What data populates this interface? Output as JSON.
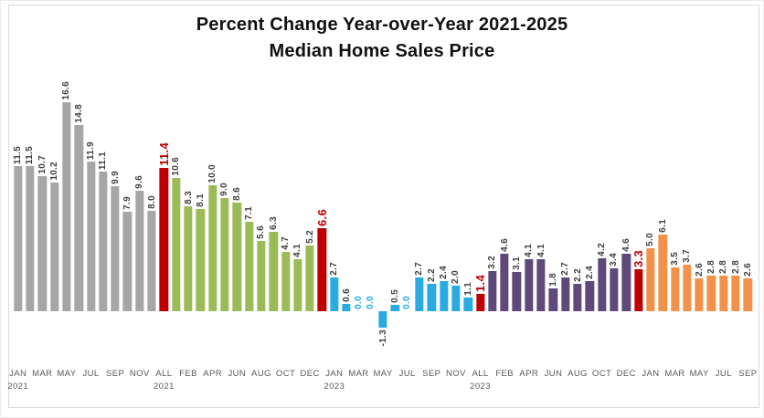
{
  "chart_data": {
    "type": "bar",
    "title_line1": "Percent Change Year-over-Year 2021-2025",
    "title_line2": "Median Home Sales Price",
    "ylabel": "",
    "xlabel": "",
    "ylim": [
      -2.5,
      18
    ],
    "grid": false,
    "legend": "none",
    "value_label_format": "one-decimal, rotated 90deg above bar",
    "palette": {
      "gray": "#A6A6A6",
      "red": "#C00000",
      "green": "#9BBB59",
      "blue": "#29ABE2",
      "purple": "#5F497A",
      "orange": "#F2924A",
      "label_dark": "#3F3F3F",
      "axis_text": "#595959",
      "frame": "#DCDCDC"
    },
    "bars": [
      {
        "month": "JAN",
        "year_group": "2021",
        "value": 11.5,
        "color": "gray",
        "label_color": "dark",
        "tick": "JAN",
        "year": "2021"
      },
      {
        "month": "FEB",
        "year_group": "2021",
        "value": 11.5,
        "color": "gray",
        "label_color": "dark",
        "tick": "",
        "year": ""
      },
      {
        "month": "MAR",
        "year_group": "2021",
        "value": 10.7,
        "color": "gray",
        "label_color": "dark",
        "tick": "MAR",
        "year": ""
      },
      {
        "month": "APR",
        "year_group": "2021",
        "value": 10.2,
        "color": "gray",
        "label_color": "dark",
        "tick": "",
        "year": ""
      },
      {
        "month": "MAY",
        "year_group": "2021",
        "value": 16.6,
        "color": "gray",
        "label_color": "dark",
        "tick": "MAY",
        "year": ""
      },
      {
        "month": "JUN",
        "year_group": "2021",
        "value": 14.8,
        "color": "gray",
        "label_color": "dark",
        "tick": "",
        "year": ""
      },
      {
        "month": "JUL",
        "year_group": "2021",
        "value": 11.9,
        "color": "gray",
        "label_color": "dark",
        "tick": "JUL",
        "year": ""
      },
      {
        "month": "AUG",
        "year_group": "2021",
        "value": 11.1,
        "color": "gray",
        "label_color": "dark",
        "tick": "",
        "year": ""
      },
      {
        "month": "SEP",
        "year_group": "2021",
        "value": 9.9,
        "color": "gray",
        "label_color": "dark",
        "tick": "SEP",
        "year": ""
      },
      {
        "month": "OCT",
        "year_group": "2021",
        "value": 7.9,
        "color": "gray",
        "label_color": "dark",
        "tick": "",
        "year": ""
      },
      {
        "month": "NOV",
        "year_group": "2021",
        "value": 9.6,
        "color": "gray",
        "label_color": "dark",
        "tick": "NOV",
        "year": ""
      },
      {
        "month": "DEC",
        "year_group": "2021",
        "value": 8.0,
        "color": "gray",
        "label_color": "dark",
        "tick": "",
        "year": ""
      },
      {
        "month": "ALL",
        "year_group": "2021",
        "value": 11.4,
        "color": "red",
        "label_color": "red",
        "tick": "ALL",
        "year": "2021"
      },
      {
        "month": "JAN",
        "year_group": "2022",
        "value": 10.6,
        "color": "green",
        "label_color": "dark",
        "tick": "",
        "year": ""
      },
      {
        "month": "FEB",
        "year_group": "2022",
        "value": 8.3,
        "color": "green",
        "label_color": "dark",
        "tick": "FEB",
        "year": ""
      },
      {
        "month": "MAR",
        "year_group": "2022",
        "value": 8.1,
        "color": "green",
        "label_color": "dark",
        "tick": "",
        "year": ""
      },
      {
        "month": "APR",
        "year_group": "2022",
        "value": 10.0,
        "color": "green",
        "label_color": "dark",
        "tick": "APR",
        "year": ""
      },
      {
        "month": "MAY",
        "year_group": "2022",
        "value": 9.0,
        "color": "green",
        "label_color": "dark",
        "tick": "",
        "year": ""
      },
      {
        "month": "JUN",
        "year_group": "2022",
        "value": 8.6,
        "color": "green",
        "label_color": "dark",
        "tick": "JUN",
        "year": ""
      },
      {
        "month": "JUL",
        "year_group": "2022",
        "value": 7.1,
        "color": "green",
        "label_color": "dark",
        "tick": "",
        "year": ""
      },
      {
        "month": "AUG",
        "year_group": "2022",
        "value": 5.6,
        "color": "green",
        "label_color": "dark",
        "tick": "AUG",
        "year": ""
      },
      {
        "month": "SEP",
        "year_group": "2022",
        "value": 6.3,
        "color": "green",
        "label_color": "dark",
        "tick": "",
        "year": ""
      },
      {
        "month": "OCT",
        "year_group": "2022",
        "value": 4.7,
        "color": "green",
        "label_color": "dark",
        "tick": "OCT",
        "year": ""
      },
      {
        "month": "NOV",
        "year_group": "2022",
        "value": 4.1,
        "color": "green",
        "label_color": "dark",
        "tick": "",
        "year": ""
      },
      {
        "month": "DEC",
        "year_group": "2022",
        "value": 5.2,
        "color": "green",
        "label_color": "dark",
        "tick": "DEC",
        "year": ""
      },
      {
        "month": "ALL",
        "year_group": "2022",
        "value": 6.6,
        "color": "red",
        "label_color": "red",
        "tick": "",
        "year": ""
      },
      {
        "month": "JAN",
        "year_group": "2023",
        "value": 2.7,
        "color": "blue",
        "label_color": "dark",
        "tick": "JAN",
        "year": "2023"
      },
      {
        "month": "FEB",
        "year_group": "2023",
        "value": 0.6,
        "color": "blue",
        "label_color": "dark",
        "tick": "",
        "year": ""
      },
      {
        "month": "MAR",
        "year_group": "2023",
        "value": 0.0,
        "color": "blue",
        "label_color": "blue",
        "tick": "MAR",
        "year": ""
      },
      {
        "month": "APR",
        "year_group": "2023",
        "value": 0.0,
        "color": "blue",
        "label_color": "blue",
        "tick": "",
        "year": ""
      },
      {
        "month": "MAY",
        "year_group": "2023",
        "value": -1.3,
        "color": "blue",
        "label_color": "dark",
        "tick": "MAY",
        "year": ""
      },
      {
        "month": "JUN",
        "year_group": "2023",
        "value": 0.5,
        "color": "blue",
        "label_color": "dark",
        "tick": "",
        "year": ""
      },
      {
        "month": "JUL",
        "year_group": "2023",
        "value": 0.0,
        "color": "blue",
        "label_color": "blue",
        "tick": "JUL",
        "year": ""
      },
      {
        "month": "AUG",
        "year_group": "2023",
        "value": 2.7,
        "color": "blue",
        "label_color": "dark",
        "tick": "",
        "year": ""
      },
      {
        "month": "SEP",
        "year_group": "2023",
        "value": 2.2,
        "color": "blue",
        "label_color": "dark",
        "tick": "SEP",
        "year": ""
      },
      {
        "month": "OCT",
        "year_group": "2023",
        "value": 2.4,
        "color": "blue",
        "label_color": "dark",
        "tick": "",
        "year": ""
      },
      {
        "month": "NOV",
        "year_group": "2023",
        "value": 2.0,
        "color": "blue",
        "label_color": "dark",
        "tick": "NOV",
        "year": ""
      },
      {
        "month": "DEC",
        "year_group": "2023",
        "value": 1.1,
        "color": "blue",
        "label_color": "dark",
        "tick": "",
        "year": ""
      },
      {
        "month": "ALL",
        "year_group": "2023",
        "value": 1.4,
        "color": "red",
        "label_color": "red",
        "tick": "ALL",
        "year": "2023"
      },
      {
        "month": "JAN",
        "year_group": "2024",
        "value": 3.2,
        "color": "purple",
        "label_color": "dark",
        "tick": "",
        "year": ""
      },
      {
        "month": "FEB",
        "year_group": "2024",
        "value": 4.6,
        "color": "purple",
        "label_color": "dark",
        "tick": "FEB",
        "year": ""
      },
      {
        "month": "MAR",
        "year_group": "2024",
        "value": 3.1,
        "color": "purple",
        "label_color": "dark",
        "tick": "",
        "year": ""
      },
      {
        "month": "APR",
        "year_group": "2024",
        "value": 4.1,
        "color": "purple",
        "label_color": "dark",
        "tick": "APR",
        "year": ""
      },
      {
        "month": "MAY",
        "year_group": "2024",
        "value": 4.1,
        "color": "purple",
        "label_color": "dark",
        "tick": "",
        "year": ""
      },
      {
        "month": "JUN",
        "year_group": "2024",
        "value": 1.8,
        "color": "purple",
        "label_color": "dark",
        "tick": "JUN",
        "year": ""
      },
      {
        "month": "JUL",
        "year_group": "2024",
        "value": 2.7,
        "color": "purple",
        "label_color": "dark",
        "tick": "",
        "year": ""
      },
      {
        "month": "AUG",
        "year_group": "2024",
        "value": 2.2,
        "color": "purple",
        "label_color": "dark",
        "tick": "AUG",
        "year": ""
      },
      {
        "month": "SEP",
        "year_group": "2024",
        "value": 2.4,
        "color": "purple",
        "label_color": "dark",
        "tick": "",
        "year": ""
      },
      {
        "month": "OCT",
        "year_group": "2024",
        "value": 4.2,
        "color": "purple",
        "label_color": "dark",
        "tick": "OCT",
        "year": ""
      },
      {
        "month": "NOV",
        "year_group": "2024",
        "value": 3.4,
        "color": "purple",
        "label_color": "dark",
        "tick": "",
        "year": ""
      },
      {
        "month": "DEC",
        "year_group": "2024",
        "value": 4.6,
        "color": "purple",
        "label_color": "dark",
        "tick": "DEC",
        "year": ""
      },
      {
        "month": "ALL",
        "year_group": "2024",
        "value": 3.3,
        "color": "red",
        "label_color": "red",
        "tick": "",
        "year": ""
      },
      {
        "month": "JAN",
        "year_group": "2025",
        "value": 5.0,
        "color": "orange",
        "label_color": "dark",
        "tick": "JAN",
        "year": ""
      },
      {
        "month": "FEB",
        "year_group": "2025",
        "value": 6.1,
        "color": "orange",
        "label_color": "dark",
        "tick": "",
        "year": ""
      },
      {
        "month": "MAR",
        "year_group": "2025",
        "value": 3.5,
        "color": "orange",
        "label_color": "dark",
        "tick": "MAR",
        "year": ""
      },
      {
        "month": "APR",
        "year_group": "2025",
        "value": 3.7,
        "color": "orange",
        "label_color": "dark",
        "tick": "",
        "year": ""
      },
      {
        "month": "MAY",
        "year_group": "2025",
        "value": 2.6,
        "color": "orange",
        "label_color": "dark",
        "tick": "MAY",
        "year": ""
      },
      {
        "month": "JUN",
        "year_group": "2025",
        "value": 2.8,
        "color": "orange",
        "label_color": "dark",
        "tick": "",
        "year": ""
      },
      {
        "month": "JUL",
        "year_group": "2025",
        "value": 2.8,
        "color": "orange",
        "label_color": "dark",
        "tick": "JUL",
        "year": ""
      },
      {
        "month": "AUG",
        "year_group": "2025",
        "value": 2.8,
        "color": "orange",
        "label_color": "dark",
        "tick": "",
        "year": ""
      },
      {
        "month": "SEP",
        "year_group": "2025",
        "value": 2.6,
        "color": "orange",
        "label_color": "dark",
        "tick": "SEP",
        "year": ""
      }
    ]
  }
}
